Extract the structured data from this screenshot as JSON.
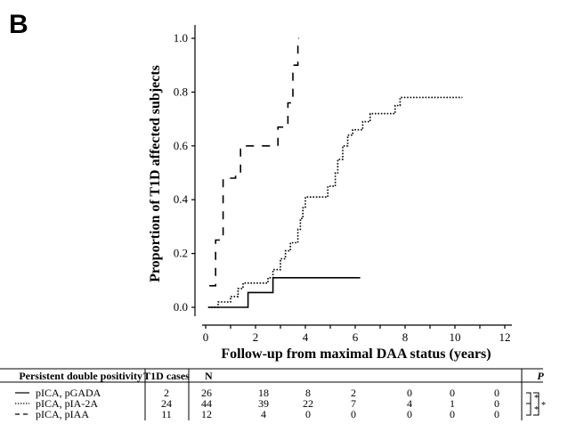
{
  "panel_label": "B",
  "chart_data": {
    "type": "line",
    "step": true,
    "xlabel": "Follow-up from maximal DAA status (years)",
    "ylabel": "Proportion of T1D affected subjects",
    "xlim": [
      0,
      12.4
    ],
    "ylim": [
      0,
      1.0
    ],
    "x_ticks": [
      "0",
      "2",
      "4",
      "6",
      "8",
      "10",
      "12"
    ],
    "y_ticks": [
      "0.0",
      "0.2",
      "0.4",
      "0.6",
      "0.8",
      "1.0"
    ],
    "series": [
      {
        "name": "pICA, pGADA",
        "line_style": "solid",
        "x": [
          0.1,
          1.7,
          1.7,
          2.7,
          2.7,
          6.2
        ],
        "y": [
          0,
          0,
          0.055,
          0.055,
          0.11,
          0.11
        ]
      },
      {
        "name": "pICA, pIA-2A",
        "line_style": "dotted",
        "x": [
          0.1,
          0.5,
          0.5,
          1.0,
          1.0,
          1.3,
          1.3,
          1.5,
          1.5,
          2.5,
          2.5,
          2.7,
          2.7,
          3.0,
          3.0,
          3.2,
          3.2,
          3.4,
          3.4,
          3.7,
          3.7,
          3.8,
          3.8,
          3.9,
          3.9,
          4.0,
          4.0,
          4.9,
          4.9,
          5.2,
          5.2,
          5.3,
          5.3,
          5.5,
          5.5,
          5.7,
          5.7,
          5.9,
          5.9,
          6.3,
          6.3,
          6.6,
          6.6,
          7.6,
          7.6,
          7.8,
          7.8,
          10.3
        ],
        "y": [
          0,
          0,
          0.02,
          0.02,
          0.04,
          0.04,
          0.07,
          0.07,
          0.09,
          0.09,
          0.11,
          0.11,
          0.14,
          0.14,
          0.18,
          0.18,
          0.21,
          0.21,
          0.24,
          0.24,
          0.29,
          0.29,
          0.33,
          0.33,
          0.37,
          0.37,
          0.41,
          0.41,
          0.45,
          0.45,
          0.5,
          0.5,
          0.55,
          0.55,
          0.6,
          0.6,
          0.64,
          0.64,
          0.66,
          0.66,
          0.69,
          0.69,
          0.72,
          0.72,
          0.75,
          0.75,
          0.78,
          0.78
        ]
      },
      {
        "name": "pICA, pIAA",
        "line_style": "dashed",
        "x": [
          0.15,
          0.4,
          0.4,
          0.7,
          0.7,
          1.2,
          1.2,
          1.4,
          1.4,
          2.3,
          2.3,
          2.9,
          2.9,
          3.3,
          3.3,
          3.5,
          3.5,
          3.7,
          3.7,
          3.75
        ],
        "y": [
          0.08,
          0.08,
          0.25,
          0.25,
          0.48,
          0.48,
          0.5,
          0.5,
          0.6,
          0.6,
          0.6,
          0.6,
          0.67,
          0.67,
          0.76,
          0.76,
          0.9,
          0.9,
          1.0,
          1.0
        ]
      }
    ]
  },
  "table": {
    "headers": [
      "Persistent double positivity",
      "T1D cases",
      "N",
      "P"
    ],
    "rows": [
      {
        "label": "pICA, pGADA",
        "style": "solid",
        "cases": "2",
        "n": [
          "26",
          "18",
          "8",
          "2",
          "0",
          "0",
          "0"
        ]
      },
      {
        "label": "pICA, pIA-2A",
        "style": "dotted",
        "cases": "24",
        "n": [
          "44",
          "39",
          "22",
          "7",
          "4",
          "1",
          "0"
        ]
      },
      {
        "label": "pICA, pIAA",
        "style": "dashed",
        "cases": "11",
        "n": [
          "12",
          "4",
          "0",
          "0",
          "0",
          "0",
          "0"
        ]
      }
    ],
    "significance": [
      "*",
      "*",
      "*"
    ]
  }
}
